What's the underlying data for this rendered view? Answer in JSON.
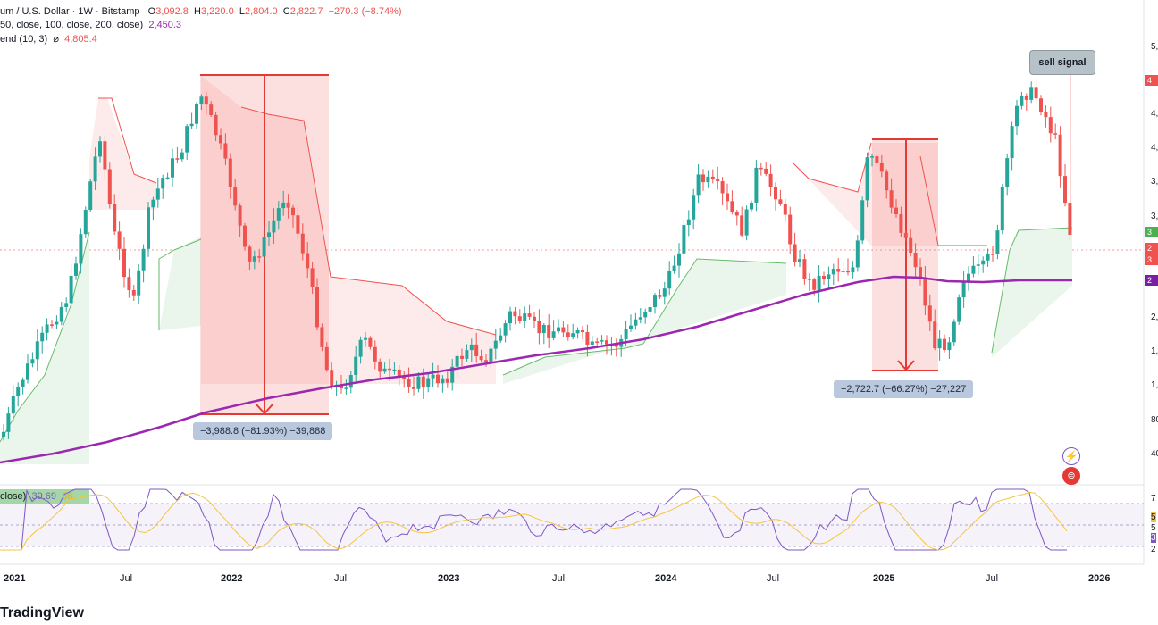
{
  "header": {
    "symbol": "um / U.S. Dollar · 1W · Bitstamp",
    "o_label": "O",
    "o_val": "3,092.8",
    "h_label": "H",
    "h_val": "3,220.0",
    "l_label": "L",
    "l_val": "2,804.0",
    "c_label": "C",
    "c_val": "2,822.7",
    "chg": "−270.3 (−8.74%)",
    "ma_line": "50, close, 100, close, 200, close)",
    "ma_val": "2,450.3",
    "st_line": "end (10, 3)",
    "st_sym": "⌀",
    "st_val": "4,805.4"
  },
  "annotations": {
    "measure1": "−3,988.8 (−81.93%) −39,888",
    "measure2": "−2,722.7 (−66.27%) −27,227",
    "signal": "sell signal"
  },
  "price_tags": [
    "4",
    "3",
    "2",
    "3",
    "2"
  ],
  "y_labels": [
    "5,",
    "4,",
    "4,",
    "3,",
    "3,",
    "2,",
    "1,",
    "1,",
    "80",
    "40"
  ],
  "rsi": {
    "label": "close)",
    "val1": "39.69",
    "val2": "56.",
    "y_labels": [
      "7",
      "5",
      "5",
      "3",
      "2"
    ]
  },
  "x_labels": [
    "2021",
    "Jul",
    "2022",
    "Jul",
    "2023",
    "Jul",
    "2024",
    "Jul",
    "2025",
    "Jul",
    "2026"
  ],
  "brand": "TradingView",
  "colors": {
    "up": "#26a69a",
    "down": "#ef5350",
    "ma": "#9c27b0",
    "rsi": "#7e57c2",
    "rsi_ma": "#f5c542",
    "st_down_fill": "#fdebeb",
    "st_up_fill": "#eaf6ec"
  },
  "icons": [
    "lightning-icon",
    "flag-icon"
  ]
}
